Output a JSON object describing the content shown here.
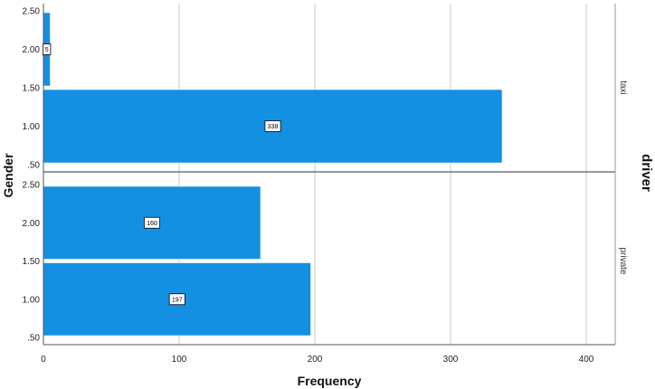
{
  "chart_data": {
    "type": "bar",
    "orientation": "horizontal",
    "xlabel": "Frequency",
    "ylabel": "Gender",
    "panel_title": "driver",
    "bar_color": "#1490e3",
    "grid": true,
    "xlim": [
      0,
      420
    ],
    "x_ticks": [
      "0",
      "100",
      "200",
      "300",
      "400"
    ],
    "y_range": [
      0.5,
      2.5
    ],
    "y_ticks": [
      ".50",
      "1.00",
      "1.50",
      "2.00",
      "2.50"
    ],
    "panels": [
      {
        "name": "taxi",
        "bars": [
          {
            "gender": 2.0,
            "value": 5,
            "label": "5"
          },
          {
            "gender": 1.0,
            "value": 338,
            "label": "338"
          }
        ]
      },
      {
        "name": "private",
        "bars": [
          {
            "gender": 2.0,
            "value": 160,
            "label": "160"
          },
          {
            "gender": 1.0,
            "value": 197,
            "label": "197"
          }
        ]
      }
    ]
  }
}
